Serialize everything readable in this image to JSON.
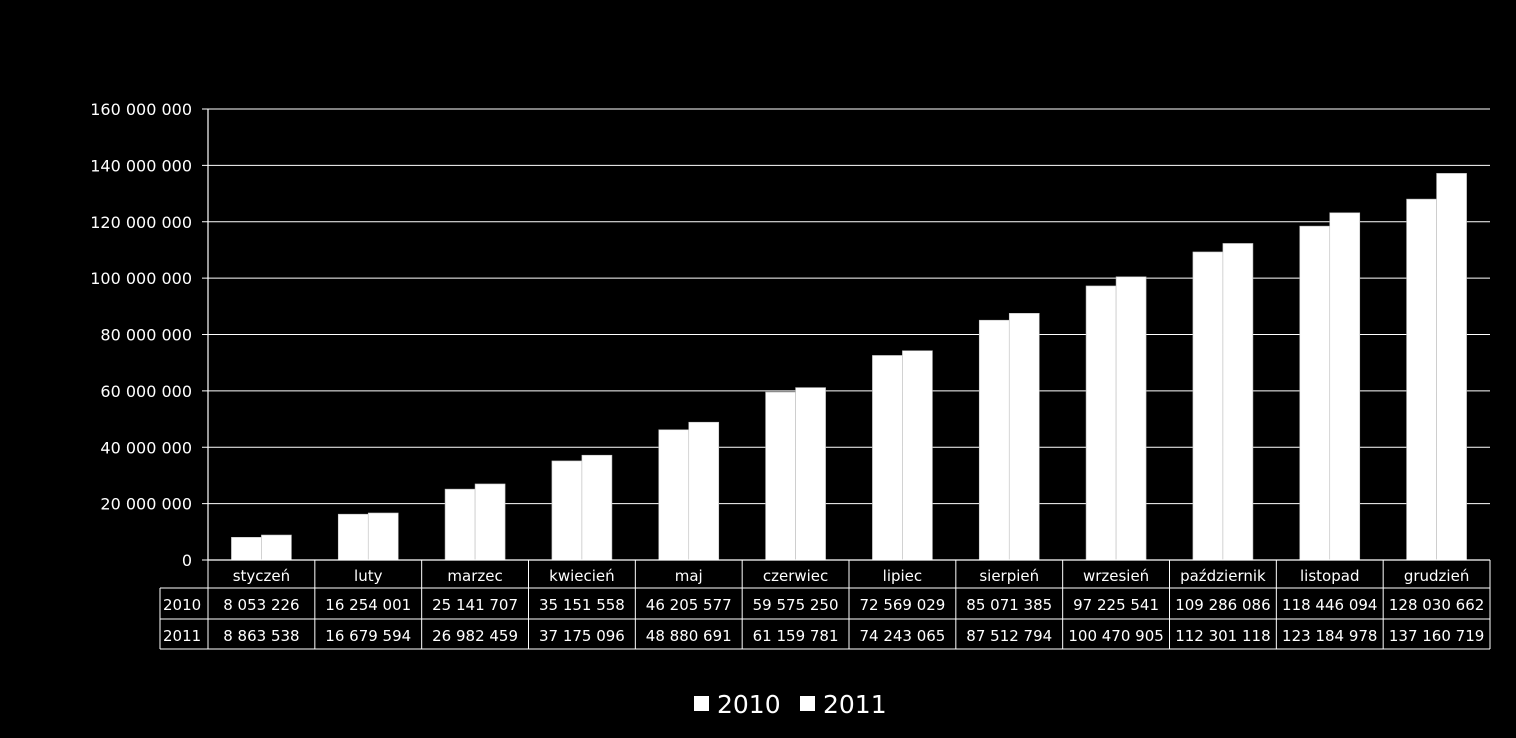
{
  "chart_data": {
    "type": "bar",
    "title": "",
    "xlabel": "",
    "ylabel": "",
    "ylim": [
      0,
      160000000
    ],
    "yticks": [
      0,
      20000000,
      40000000,
      60000000,
      80000000,
      100000000,
      120000000,
      140000000,
      160000000
    ],
    "ytick_labels": [
      "0",
      "20 000 000",
      "40 000 000",
      "60 000 000",
      "80 000 000",
      "100 000 000",
      "120 000 000",
      "140 000 000",
      "160 000 000"
    ],
    "grid": true,
    "legend_position": "bottom",
    "categories": [
      "styczeń",
      "luty",
      "marzec",
      "kwiecień",
      "maj",
      "czerwiec",
      "lipiec",
      "sierpień",
      "wrzesień",
      "październik",
      "listopad",
      "grudzień"
    ],
    "series": [
      {
        "name": "2010",
        "color": "#ffffff",
        "values": [
          8053226,
          16254001,
          25141707,
          35151558,
          46205577,
          59575250,
          72569029,
          85071385,
          97225541,
          109286086,
          118446094,
          128030662
        ],
        "labels": [
          "8 053 226",
          "16 254 001",
          "25 141 707",
          "35 151 558",
          "46 205 577",
          "59 575 250",
          "72 569 029",
          "85 071 385",
          "97 225 541",
          "109 286 086",
          "118 446 094",
          "128 030 662"
        ]
      },
      {
        "name": "2011",
        "color": "#ffffff",
        "values": [
          8863538,
          16679594,
          26982459,
          37175096,
          48880691,
          61159781,
          74243065,
          87512794,
          100470905,
          112301118,
          123184978,
          137160719
        ],
        "labels": [
          "8 863 538",
          "16 679 594",
          "26 982 459",
          "37 175 096",
          "48 880 691",
          "61 159 781",
          "74 243 065",
          "87 512 794",
          "100 470 905",
          "112 301 118",
          "123 184 978",
          "137 160 719"
        ]
      }
    ]
  }
}
